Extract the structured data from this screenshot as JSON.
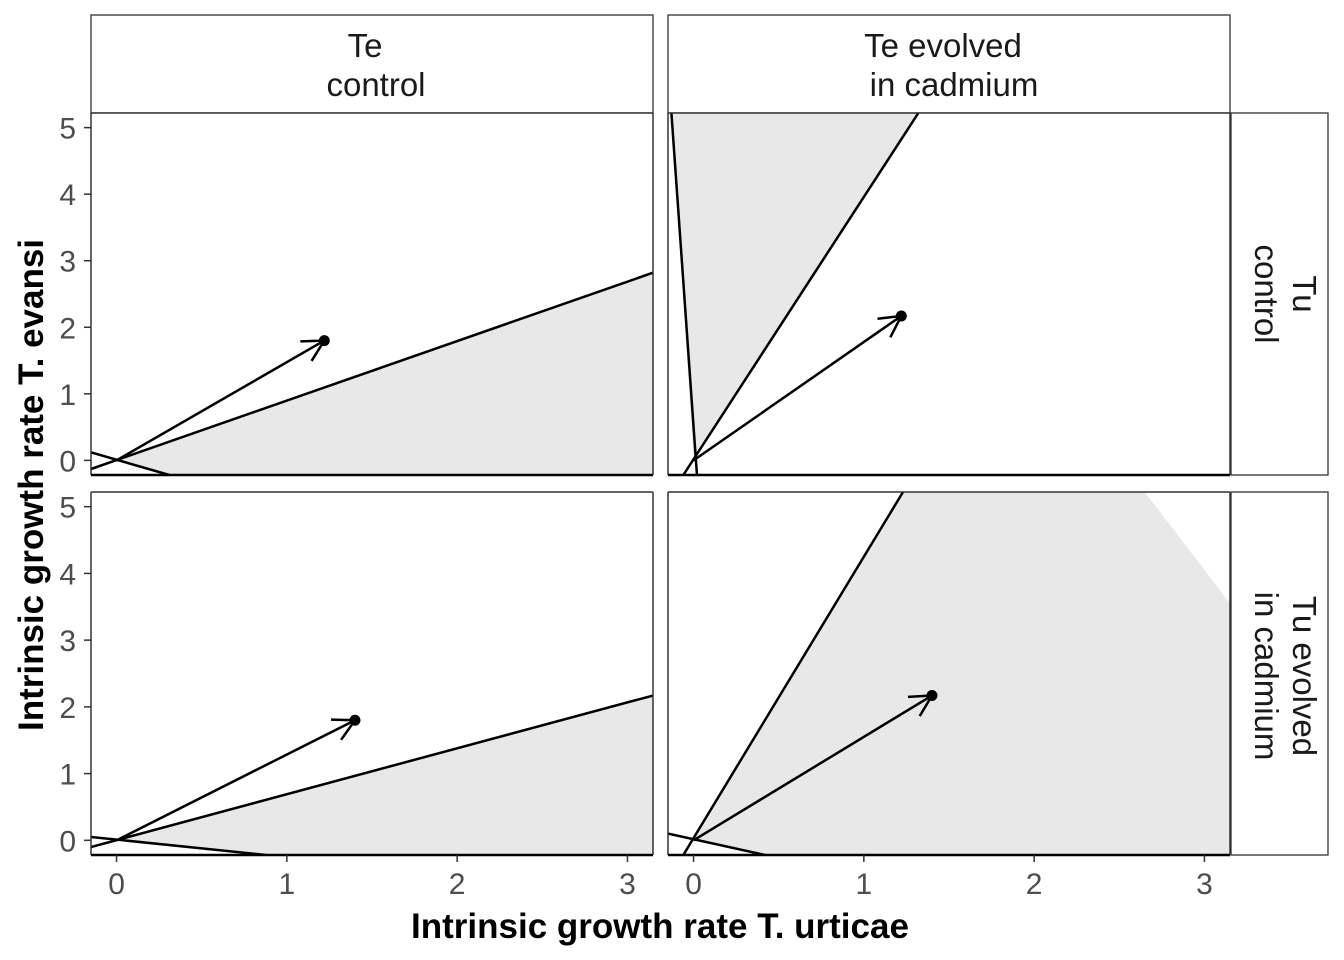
{
  "chart_data": {
    "type": "faceted-line",
    "xlabel": "Intrinsic growth rate T. urticae",
    "ylabel": "Intrinsic growth rate T. evansi",
    "xlim": [
      -0.15,
      3.15
    ],
    "ylim": [
      -0.22,
      5.22
    ],
    "x_ticks": [
      "0",
      "1",
      "2",
      "3"
    ],
    "y_ticks": [
      "0",
      "1",
      "2",
      "3",
      "4",
      "5"
    ],
    "grid": false,
    "region_color": "#e8e8e8",
    "column_strips": [
      {
        "line1": "Te",
        "line2": "control"
      },
      {
        "line1": "Te evolved",
        "line2": "in cadmium"
      }
    ],
    "row_strips": [
      {
        "line1": "Tu",
        "line2": "control"
      },
      {
        "line1": "Tu evolved",
        "line2": "in cadmium"
      }
    ],
    "panels": [
      {
        "row": 0,
        "col": 0,
        "point": [
          1.22,
          1.8
        ],
        "region": [
          [
            0,
            0
          ],
          [
            3.15,
            2.82
          ],
          [
            3.15,
            -0.22
          ],
          [
            0.31,
            -0.22
          ]
        ],
        "lines": [
          [
            [
              -0.15,
              -0.13
            ],
            [
              3.15,
              2.82
            ]
          ],
          [
            [
              -0.15,
              0.12
            ],
            [
              0.31,
              -0.22
            ]
          ]
        ]
      },
      {
        "row": 0,
        "col": 1,
        "point": [
          1.22,
          2.17
        ],
        "region": [
          [
            0,
            0
          ],
          [
            1.32,
            5.22
          ],
          [
            -0.13,
            5.22
          ]
        ],
        "lines": [
          [
            [
              -0.06,
              -0.22
            ],
            [
              1.32,
              5.22
            ]
          ],
          [
            [
              0.02,
              -0.22
            ],
            [
              -0.13,
              5.22
            ]
          ]
        ]
      },
      {
        "row": 1,
        "col": 0,
        "point": [
          1.4,
          1.8
        ],
        "region": [
          [
            0,
            0
          ],
          [
            3.15,
            2.17
          ],
          [
            3.15,
            -0.22
          ],
          [
            0.88,
            -0.22
          ]
        ],
        "lines": [
          [
            [
              -0.15,
              -0.1
            ],
            [
              3.15,
              2.17
            ]
          ],
          [
            [
              -0.15,
              0.05
            ],
            [
              0.88,
              -0.22
            ]
          ]
        ]
      },
      {
        "row": 1,
        "col": 1,
        "point": [
          1.4,
          2.17
        ],
        "region": [
          [
            0,
            0
          ],
          [
            1.23,
            5.22
          ],
          [
            2.65,
            5.22
          ],
          [
            3.15,
            3.55
          ],
          [
            3.15,
            -0.22
          ],
          [
            0.42,
            -0.22
          ]
        ],
        "lines": [
          [
            [
              -0.06,
              -0.22
            ],
            [
              1.23,
              5.22
            ]
          ],
          [
            [
              -0.15,
              0.1
            ],
            [
              0.42,
              -0.22
            ]
          ]
        ]
      }
    ]
  }
}
